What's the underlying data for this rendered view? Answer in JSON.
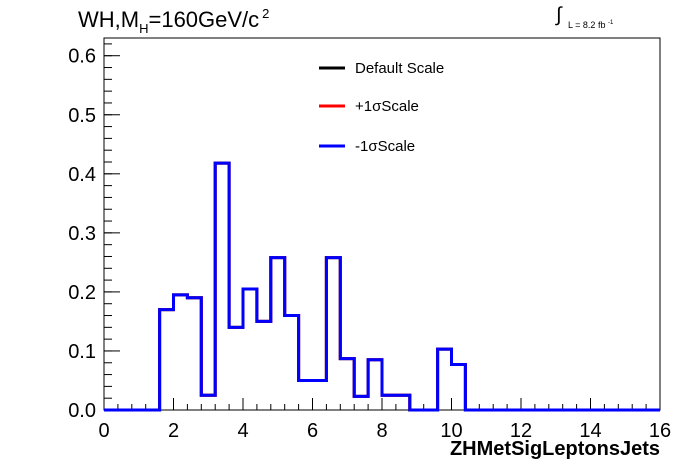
{
  "header": {
    "title_main": "WH,M",
    "title_sub": "H",
    "title_rest": "=160GeV/c",
    "title_sup": "2",
    "lumi_symbol": "∫",
    "lumi_text": "L = 8.2 fb",
    "lumi_sup": "-1"
  },
  "colors": {
    "default": "#000000",
    "plus": "#ff0000",
    "minus": "#0000ff"
  },
  "chart_data": {
    "type": "line",
    "title": "WH,MH=160GeV/c2",
    "xlabel": "ZHMetSigLeptonsJets",
    "ylabel": "",
    "xlim": [
      0,
      16
    ],
    "ylim": [
      0,
      0.63
    ],
    "x_ticks": [
      "0",
      "2",
      "4",
      "6",
      "8",
      "10",
      "12",
      "14",
      "16"
    ],
    "y_ticks": [
      "0.0",
      "0.1",
      "0.2",
      "0.3",
      "0.4",
      "0.5",
      "0.6"
    ],
    "legend_position": "top-center",
    "bin_width": 0.4,
    "bin_low_edges": [
      0,
      0.4,
      0.8,
      1.2,
      1.6,
      2.0,
      2.4,
      2.8,
      3.2,
      3.6,
      4.0,
      4.4,
      4.8,
      5.2,
      5.6,
      6.0,
      6.4,
      6.8,
      7.2,
      7.6,
      8.0,
      8.4,
      8.8,
      9.2,
      9.6,
      10.0,
      10.4,
      10.8,
      11.2,
      11.6,
      12.0,
      12.4,
      12.8,
      13.2,
      13.6,
      14.0,
      14.4,
      14.8,
      15.2,
      15.6
    ],
    "series": [
      {
        "name": "Default Scale",
        "color": "#000000",
        "values": [
          0,
          0,
          0,
          0,
          0.17,
          0.195,
          0.19,
          0.025,
          0.418,
          0.14,
          0.205,
          0.15,
          0.258,
          0.16,
          0.05,
          0.05,
          0.258,
          0.087,
          0.023,
          0.085,
          0.025,
          0.025,
          0,
          0,
          0.103,
          0.077,
          0,
          0,
          0,
          0,
          0,
          0,
          0,
          0,
          0,
          0,
          0,
          0,
          0,
          0
        ]
      },
      {
        "name": "+1σScale",
        "color": "#ff0000",
        "values": [
          0,
          0,
          0,
          0,
          0.17,
          0.195,
          0.19,
          0.025,
          0.418,
          0.14,
          0.205,
          0.15,
          0.258,
          0.16,
          0.05,
          0.05,
          0.258,
          0.087,
          0.023,
          0.085,
          0.025,
          0.025,
          0,
          0,
          0.103,
          0.077,
          0,
          0,
          0,
          0,
          0,
          0,
          0,
          0,
          0,
          0,
          0,
          0,
          0,
          0
        ]
      },
      {
        "name": "-1σScale",
        "color": "#0000ff",
        "values": [
          0,
          0,
          0,
          0,
          0.17,
          0.195,
          0.19,
          0.025,
          0.418,
          0.14,
          0.205,
          0.15,
          0.258,
          0.16,
          0.05,
          0.05,
          0.258,
          0.087,
          0.023,
          0.085,
          0.025,
          0.025,
          0,
          0,
          0.103,
          0.077,
          0,
          0,
          0,
          0,
          0,
          0,
          0,
          0,
          0,
          0,
          0,
          0,
          0,
          0
        ]
      }
    ]
  }
}
